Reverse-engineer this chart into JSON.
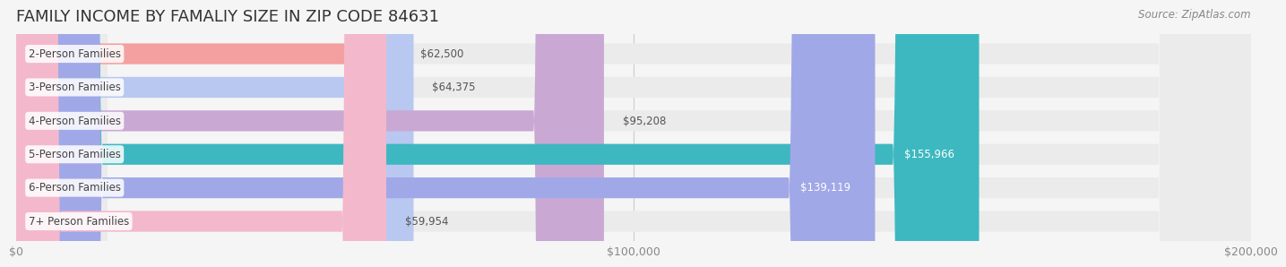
{
  "title": "FAMILY INCOME BY FAMALIY SIZE IN ZIP CODE 84631",
  "source": "Source: ZipAtlas.com",
  "categories": [
    "2-Person Families",
    "3-Person Families",
    "4-Person Families",
    "5-Person Families",
    "6-Person Families",
    "7+ Person Families"
  ],
  "values": [
    62500,
    64375,
    95208,
    155966,
    139119,
    59954
  ],
  "bar_colors": [
    "#f4a0a0",
    "#b8c8f0",
    "#c9a8d4",
    "#3db8c0",
    "#a0a8e8",
    "#f4b8cc"
  ],
  "label_colors": [
    "#555555",
    "#555555",
    "#555555",
    "#ffffff",
    "#ffffff",
    "#555555"
  ],
  "bg_color": "#f5f5f5",
  "bar_bg_color": "#ebebeb",
  "xlim": [
    0,
    200000
  ],
  "xticks": [
    0,
    100000,
    200000
  ],
  "xtick_labels": [
    "$0",
    "$100,000",
    "$200,000"
  ],
  "value_labels": [
    "$62,500",
    "$64,375",
    "$95,208",
    "$155,966",
    "$139,119",
    "$59,954"
  ],
  "title_fontsize": 13,
  "bar_height": 0.62,
  "figsize": [
    14.06,
    3.05
  ],
  "dpi": 100
}
